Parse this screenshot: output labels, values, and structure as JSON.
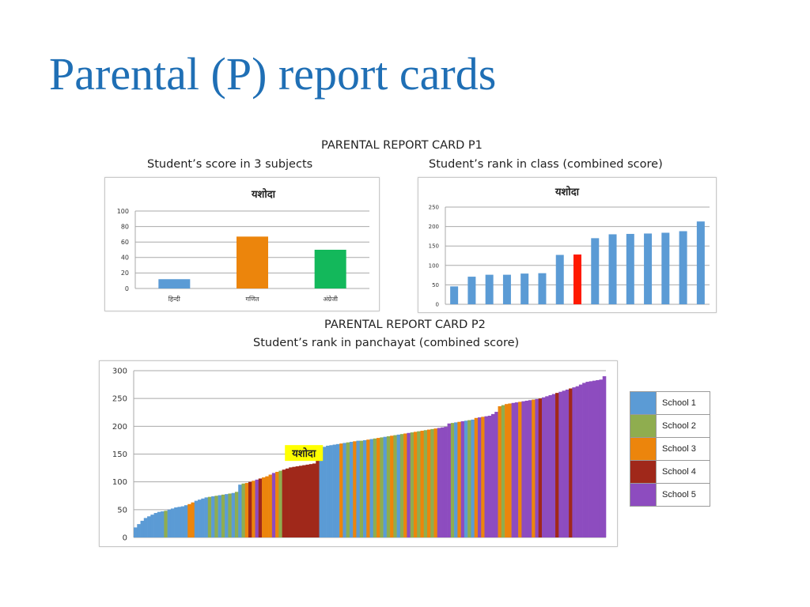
{
  "slide": {
    "title": "Parental (P) report cards"
  },
  "p1": {
    "header": "PARENTAL REPORT CARD P1",
    "left_caption": "Student’s score in 3 subjects",
    "right_caption": "Student’s rank in class (combined score)"
  },
  "p2": {
    "header": "PARENTAL REPORT CARD P2",
    "caption": "Student’s rank in panchayat (combined score)"
  },
  "colors": {
    "school1": "#5b9bd5",
    "school2": "#8fad4f",
    "school3": "#ec850c",
    "school4": "#a0281a",
    "school5": "#8d4cbf",
    "highlight": "#ff1a00",
    "grid": "#9a9a9a"
  },
  "legend": [
    "School 1",
    "School 2",
    "School 3",
    "School 4",
    "School 5"
  ],
  "chart_data": [
    {
      "type": "bar",
      "title": "यशोदा",
      "categories": [
        "हिन्दी",
        "गणित",
        "अंग्रेजी"
      ],
      "values": [
        12,
        67,
        50
      ],
      "bar_colors": [
        "#5b9bd5",
        "#ec850c",
        "#13b85b"
      ],
      "ylim": [
        0,
        100
      ],
      "yticks": [
        0,
        20,
        40,
        60,
        80,
        100
      ],
      "grid": true
    },
    {
      "type": "bar",
      "title": "यशोदा",
      "values": [
        46,
        71,
        76,
        76,
        79,
        80,
        127,
        128,
        170,
        180,
        181,
        182,
        184,
        188,
        213
      ],
      "highlight_index": 7,
      "ylim": [
        0,
        250
      ],
      "yticks": [
        0,
        50,
        100,
        150,
        200,
        250
      ],
      "grid": true
    },
    {
      "type": "bar",
      "annotation": "यशोदा",
      "ylim": [
        0,
        300
      ],
      "yticks": [
        0,
        50,
        100,
        150,
        200,
        250,
        300
      ],
      "grid": true,
      "series": [
        {
          "values": [
            18,
            24,
            30,
            35,
            38,
            41,
            44,
            46,
            47,
            48,
            50,
            52,
            54,
            55,
            56,
            58,
            60,
            63,
            66,
            68,
            70,
            72,
            73,
            74,
            75,
            76,
            77,
            78,
            79,
            80,
            82,
            95,
            97,
            98,
            100,
            102,
            104,
            106,
            108,
            110,
            113,
            116,
            118,
            120,
            122,
            124,
            126,
            127,
            128,
            129,
            130,
            131,
            132,
            133,
            160,
            162,
            163,
            165,
            166,
            167,
            168,
            169,
            170,
            171,
            172,
            173,
            174,
            174,
            175,
            176,
            177,
            178,
            179,
            180,
            181,
            182,
            183,
            184,
            185,
            186,
            187,
            188,
            189,
            190,
            191,
            192,
            193,
            194,
            195,
            196,
            197,
            198,
            199,
            205,
            206,
            207,
            208,
            209,
            210,
            211,
            212,
            215,
            216,
            217,
            218,
            219,
            222,
            226,
            236,
            238,
            240,
            241,
            242,
            243,
            244,
            245,
            246,
            247,
            248,
            249,
            250,
            252,
            254,
            256,
            258,
            260,
            262,
            264,
            266,
            268,
            270,
            272,
            275,
            278,
            280,
            281,
            282,
            283,
            284,
            290
          ]
        },
        {
          "schools": [
            1,
            1,
            1,
            1,
            1,
            1,
            1,
            1,
            1,
            2,
            1,
            1,
            1,
            1,
            1,
            1,
            3,
            3,
            1,
            1,
            1,
            1,
            2,
            1,
            2,
            1,
            2,
            1,
            2,
            1,
            2,
            1,
            2,
            3,
            4,
            3,
            5,
            4,
            3,
            3,
            3,
            5,
            3,
            2,
            4,
            4,
            4,
            4,
            4,
            4,
            4,
            4,
            4,
            4,
            4,
            1,
            1,
            1,
            1,
            1,
            1,
            3,
            1,
            2,
            1,
            3,
            1,
            2,
            1,
            3,
            1,
            2,
            3,
            2,
            1,
            2,
            3,
            2,
            1,
            2,
            3,
            5,
            2,
            3,
            2,
            3,
            2,
            3,
            2,
            3,
            5,
            5,
            5,
            5,
            2,
            1,
            3,
            5,
            1,
            2,
            1,
            3,
            5,
            3,
            5,
            5,
            5,
            5,
            3,
            2,
            3,
            3,
            5,
            5,
            3,
            5,
            5,
            5,
            3,
            5,
            4,
            5,
            5,
            5,
            5,
            4,
            5,
            5,
            5,
            4,
            5,
            5,
            5,
            5,
            5,
            5,
            5,
            5,
            5,
            5
          ]
        }
      ]
    }
  ]
}
